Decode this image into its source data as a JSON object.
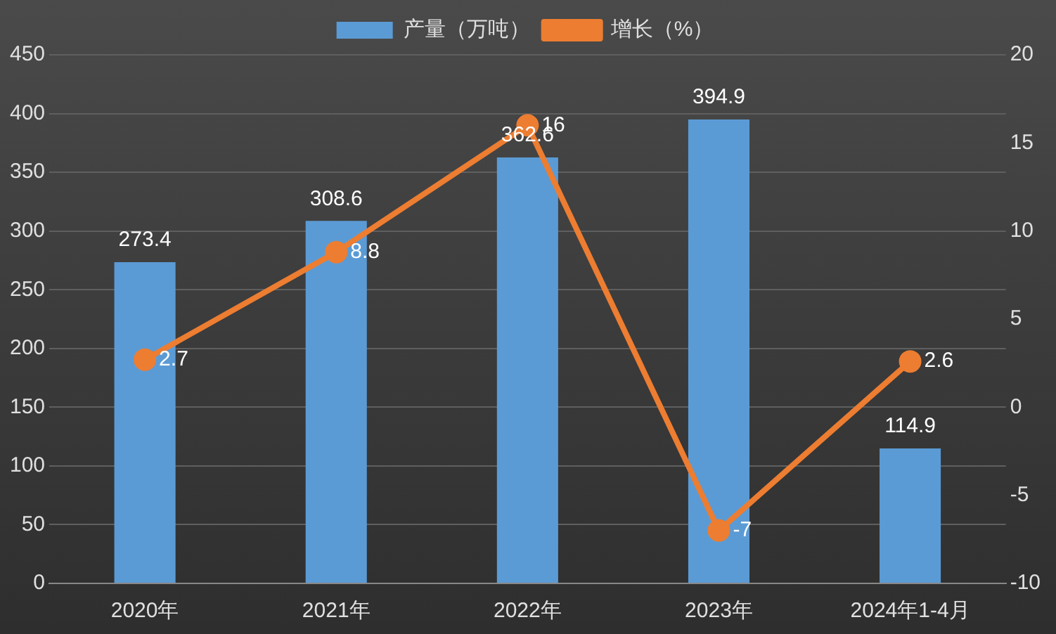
{
  "chart_data": {
    "type": "bar",
    "categories": [
      "2020年",
      "2021年",
      "2022年",
      "2023年",
      "2024年1-4月"
    ],
    "series": [
      {
        "name": "产量（万吨）",
        "color": "#5b9bd5",
        "values": [
          273.4,
          308.6,
          362.6,
          394.9,
          114.9
        ]
      },
      {
        "name": "增长（%）",
        "type": "line",
        "axis": "y2",
        "color": "#ed7d31",
        "values": [
          2.7,
          8.8,
          16,
          -7,
          2.6
        ]
      }
    ],
    "ylim": [
      0,
      450
    ],
    "yticks": [
      0,
      50,
      100,
      150,
      200,
      250,
      300,
      350,
      400,
      450
    ],
    "y2lim": [
      -10,
      20
    ],
    "y2ticks": [
      -10,
      -5,
      0,
      5,
      10,
      15,
      20
    ],
    "grid": "y",
    "legend": "top",
    "marker": "circle",
    "line_style": "solid",
    "data_labels": true
  }
}
